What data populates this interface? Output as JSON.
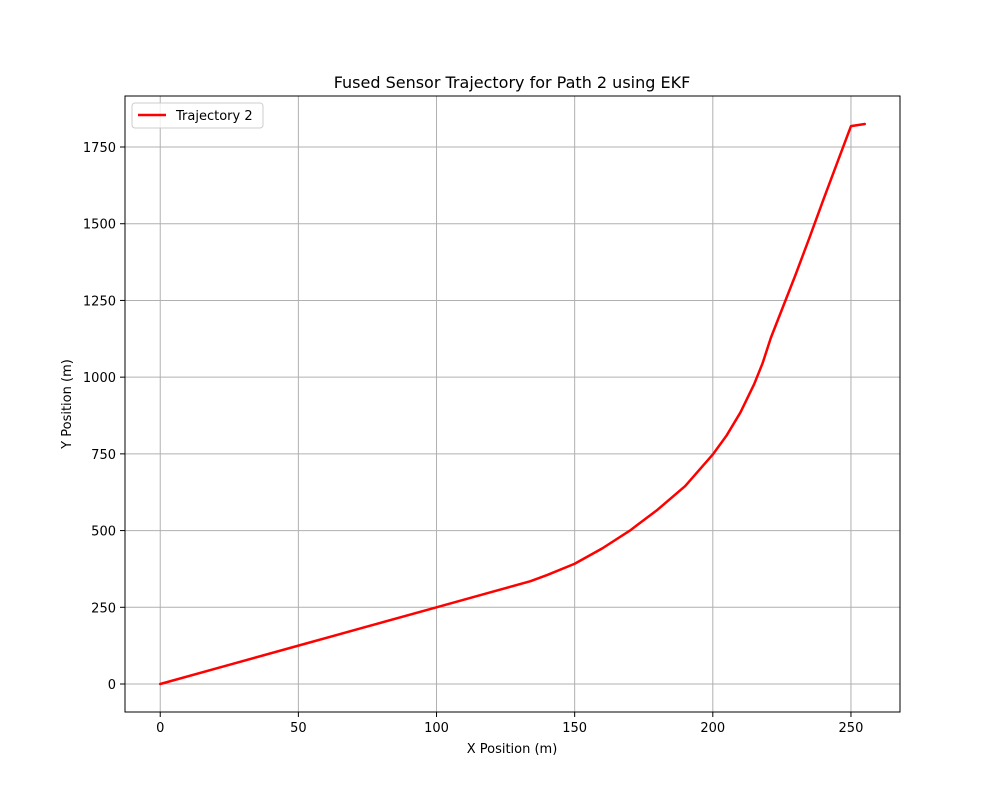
{
  "chart_data": {
    "type": "line",
    "title": "Fused Sensor Trajectory for Path 2 using EKF",
    "xlabel": "X Position (m)",
    "ylabel": "Y Position (m)",
    "xlim": [
      -12.75,
      267.75
    ],
    "ylim": [
      -91.25,
      1916.25
    ],
    "xticks": [
      0,
      50,
      100,
      150,
      200,
      250
    ],
    "yticks": [
      0,
      250,
      500,
      750,
      1000,
      1250,
      1500,
      1750
    ],
    "grid": true,
    "legend_position": "top-left",
    "series": [
      {
        "name": "Trajectory 2",
        "color": "#ff0000",
        "x": [
          0,
          25,
          50,
          75,
          100,
          120,
          134,
          140,
          150,
          160,
          170,
          180,
          190,
          200,
          205,
          210,
          215,
          218,
          221,
          225,
          230,
          235,
          240,
          245,
          250,
          255
        ],
        "y": [
          0,
          62.5,
          125,
          187.5,
          250,
          300,
          335,
          355,
          392,
          442,
          500,
          568,
          645,
          748,
          810,
          885,
          978,
          1045,
          1128,
          1220,
          1335,
          1455,
          1578,
          1698,
          1818,
          1825
        ]
      }
    ]
  }
}
